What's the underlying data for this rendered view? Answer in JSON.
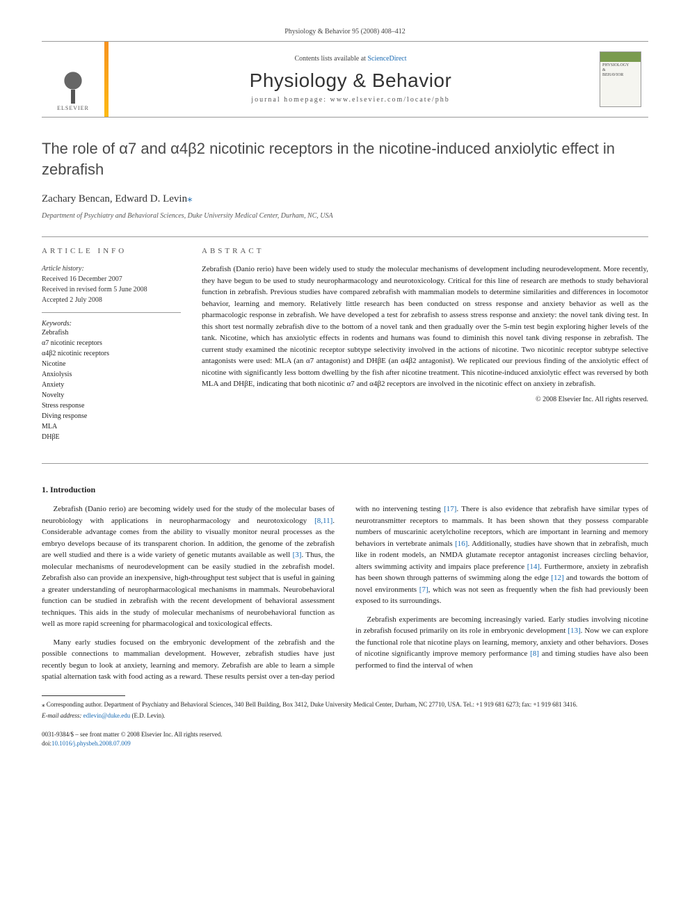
{
  "header": {
    "running": "Physiology & Behavior 95 (2008) 408–412"
  },
  "banner": {
    "publisher": "ELSEVIER",
    "contents_prefix": "Contents lists available at ",
    "contents_link": "ScienceDirect",
    "journal": "Physiology & Behavior",
    "homepage": "journal homepage: www.elsevier.com/locate/phb",
    "cover_label1": "PHYSIOLOGY",
    "cover_label2": "&",
    "cover_label3": "BEHAVIOR"
  },
  "article": {
    "title": "The role of α7 and α4β2 nicotinic receptors in the nicotine-induced anxiolytic effect in zebrafish",
    "authors_plain": "Zachary Bencan, Edward D. Levin",
    "corr_mark": "⁎",
    "affiliation": "Department of Psychiatry and Behavioral Sciences, Duke University Medical Center, Durham, NC, USA"
  },
  "info": {
    "heading": "ARTICLE INFO",
    "history_label": "Article history:",
    "received": "Received 16 December 2007",
    "revised": "Received in revised form 5 June 2008",
    "accepted": "Accepted 2 July 2008",
    "keywords_label": "Keywords:",
    "keywords": [
      "Zebrafish",
      "α7 nicotinic receptors",
      "α4β2 nicotinic receptors",
      "Nicotine",
      "Anxiolysis",
      "Anxiety",
      "Novelty",
      "Stress response",
      "Diving response",
      "MLA",
      "DHβE"
    ]
  },
  "abstract": {
    "heading": "ABSTRACT",
    "text": "Zebrafish (Danio rerio) have been widely used to study the molecular mechanisms of development including neurodevelopment. More recently, they have begun to be used to study neuropharmacology and neurotoxicology. Critical for this line of research are methods to study behavioral function in zebrafish. Previous studies have compared zebrafish with mammalian models to determine similarities and differences in locomotor behavior, learning and memory. Relatively little research has been conducted on stress response and anxiety behavior as well as the pharmacologic response in zebrafish. We have developed a test for zebrafish to assess stress response and anxiety: the novel tank diving test. In this short test normally zebrafish dive to the bottom of a novel tank and then gradually over the 5-min test begin exploring higher levels of the tank. Nicotine, which has anxiolytic effects in rodents and humans was found to diminish this novel tank diving response in zebrafish. The current study examined the nicotinic receptor subtype selectivity involved in the actions of nicotine. Two nicotinic receptor subtype selective antagonists were used: MLA (an α7 antagonist) and DHβE (an α4β2 antagonist). We replicated our previous finding of the anxiolytic effect of nicotine with significantly less bottom dwelling by the fish after nicotine treatment. This nicotine-induced anxiolytic effect was reversed by both MLA and DHβE, indicating that both nicotinic α7 and α4β2 receptors are involved in the nicotinic effect on anxiety in zebrafish.",
    "copyright": "© 2008 Elsevier Inc. All rights reserved."
  },
  "intro": {
    "heading": "1. Introduction",
    "p1a": "Zebrafish (Danio rerio) are becoming widely used for the study of the molecular bases of neurobiology with applications in neuropharmacology and neurotoxicology ",
    "r1": "[8,11]",
    "p1b": ". Considerable advantage comes from the ability to visually monitor neural processes as the embryo develops because of its transparent chorion. In addition, the genome of the zebrafish are well studied and there is a wide variety of genetic mutants available as well ",
    "r2": "[3]",
    "p1c": ". Thus, the molecular mechanisms of neurodevelopment can be easily studied in the zebrafish model. Zebrafish also can provide an inexpensive, high-throughput test subject that is useful in gaining a greater understanding of neuropharmacological mechanisms in mammals. Neurobehavioral function can be studied in zebrafish with the recent development of behavioral assessment techniques. This aids in the study of molecular mechanisms of neurobehavioral function as well as more rapid screening for pharmacological and toxicological effects.",
    "p2a": "Many early studies focused on the embryonic development of the zebrafish and the possible connections to mammalian development. However, zebrafish studies have just recently begun to look at anxiety, learning and memory. Zebrafish are able to learn a simple spatial alternation task with food acting as a reward. These results persist over a ten-day period with no intervening testing ",
    "r3": "[17]",
    "p2b": ". There is also evidence that zebrafish have similar types of neurotransmitter receptors to mammals. It has been shown that they possess comparable numbers of muscarinic acetylcholine receptors, which are important in learning and memory behaviors in vertebrate animals ",
    "r4": "[16]",
    "p2c": ". Additionally, studies have shown that in zebrafish, much like in rodent models, an NMDA glutamate receptor antagonist increases circling behavior, alters swimming activity and impairs place preference ",
    "r5": "[14]",
    "p2d": ". Furthermore, anxiety in zebrafish has been shown through patterns of swimming along the edge ",
    "r6": "[12]",
    "p2e": " and towards the bottom of novel environments ",
    "r7": "[7]",
    "p2f": ", which was not seen as frequently when the fish had previously been exposed to its surroundings.",
    "p3a": "Zebrafish experiments are becoming increasingly varied. Early studies involving nicotine in zebrafish focused primarily on its role in embryonic development ",
    "r8": "[13]",
    "p3b": ". Now we can explore the functional role that nicotine plays on learning, memory, anxiety and other behaviors. Doses of nicotine significantly improve memory performance ",
    "r9": "[8]",
    "p3c": " and timing studies have also been performed to find the interval of when"
  },
  "footnotes": {
    "corr": "⁎ Corresponding author. Department of Psychiatry and Behavioral Sciences, 340 Bell Building, Box 3412, Duke University Medical Center, Durham, NC 27710, USA. Tel.: +1 919 681 6273; fax: +1 919 681 3416.",
    "email_label": "E-mail address: ",
    "email": "edlevin@duke.edu",
    "email_suffix": " (E.D. Levin)."
  },
  "bottom": {
    "line1": "0031-9384/$ – see front matter © 2008 Elsevier Inc. All rights reserved.",
    "doi_prefix": "doi:",
    "doi": "10.1016/j.physbeh.2008.07.009"
  },
  "colors": {
    "link": "#1a6bb3",
    "orange1": "#f7931e",
    "orange2": "#fdb913",
    "cover_green": "#7a9b4e",
    "rule": "#999999"
  }
}
